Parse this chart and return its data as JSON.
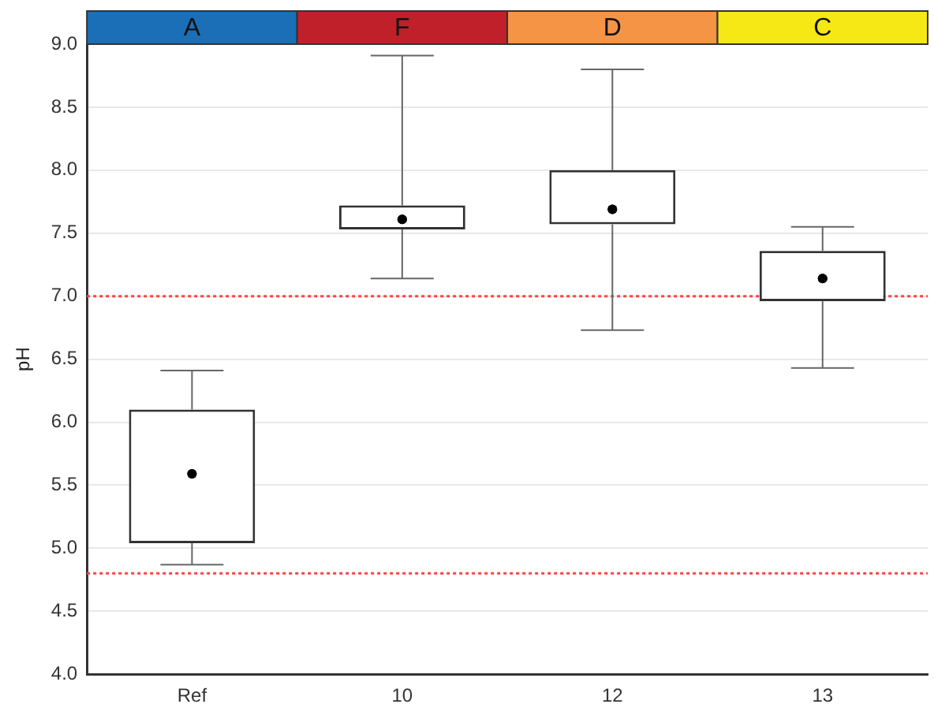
{
  "chart_data": {
    "type": "box",
    "ylabel": "pH",
    "categories": [
      "Ref",
      "10",
      "12",
      "13"
    ],
    "boxes": [
      {
        "low": 4.87,
        "q1": 5.04,
        "median": 5.59,
        "q3": 6.1,
        "high": 6.41
      },
      {
        "low": 7.14,
        "q1": 7.53,
        "median": 7.61,
        "q3": 7.72,
        "high": 8.91
      },
      {
        "low": 6.73,
        "q1": 7.57,
        "median": 7.69,
        "q3": 8.0,
        "high": 8.8
      },
      {
        "low": 6.43,
        "q1": 6.96,
        "median": 7.14,
        "q3": 7.36,
        "high": 7.55
      }
    ],
    "ylim": [
      4.0,
      9.0
    ],
    "yticks": [
      {
        "value": 4,
        "label": "4.0"
      },
      {
        "value": 4.5,
        "label": "4.5"
      },
      {
        "value": 5,
        "label": "5.0"
      },
      {
        "value": 5.5,
        "label": "5.5"
      },
      {
        "value": 6,
        "label": "6.0"
      },
      {
        "value": 6.5,
        "label": "6.5"
      },
      {
        "value": 7,
        "label": "7.0"
      },
      {
        "value": 7.5,
        "label": "7.5"
      },
      {
        "value": 8,
        "label": "8.0"
      },
      {
        "value": 8.5,
        "label": "8.5"
      },
      {
        "value": 9,
        "label": "9.0"
      }
    ],
    "ref_lines": [
      {
        "axis": "y",
        "value": 7.0,
        "color": "#ff4040",
        "line_style": "dotted"
      },
      {
        "axis": "y",
        "value": 4.8,
        "color": "#ff4040",
        "line_style": "dotted"
      }
    ],
    "annotations": [
      "A",
      "F",
      "D",
      "C"
    ],
    "grid": "y",
    "legend": false,
    "marker": "circle"
  }
}
